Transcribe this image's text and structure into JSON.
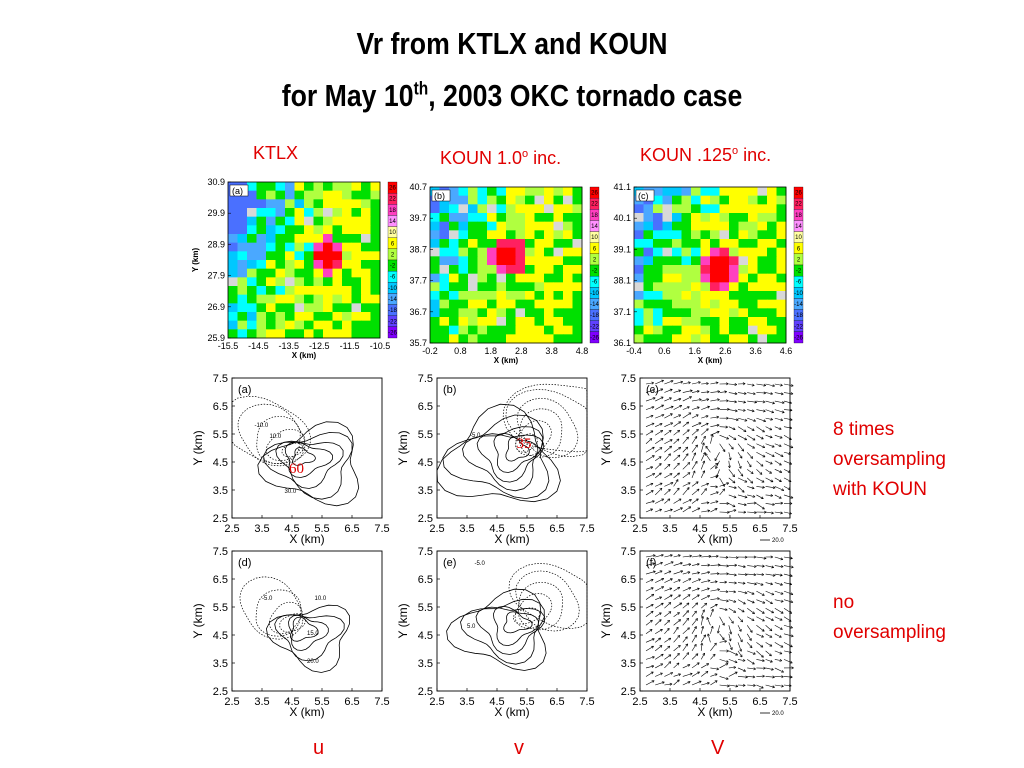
{
  "title": {
    "line1": "Vr from KTLX and KOUN",
    "line2_pre": "for May 10",
    "line2_sup": "th",
    "line2_post": ", 2003 OKC tornado case"
  },
  "column_labels": {
    "ktlx": "KTLX",
    "koun1_pre": "KOUN 1.0",
    "koun1_sup": "o",
    "koun1_post": " inc.",
    "koun2_pre": "KOUN .125",
    "koun2_sup": "o",
    "koun2_post": " inc."
  },
  "side_labels": {
    "oversampling_1": "8 times",
    "oversampling_2": "oversampling",
    "oversampling_3": "with KOUN",
    "no_1": "no",
    "no_2": "oversampling"
  },
  "bottom_labels": {
    "u": "u",
    "v": "v",
    "V": "V"
  },
  "annotations": {
    "a": "60",
    "b": "35"
  },
  "colorbar_ticks": [
    "26",
    "22",
    "18",
    "14",
    "10",
    "6",
    "2",
    "-2",
    "-6",
    "-10",
    "-14",
    "-18",
    "-22",
    "-26"
  ],
  "colors": {
    "accent": "#e00000"
  },
  "panels_top": [
    {
      "id": "a",
      "label": "(a)",
      "yticks": [
        "30.9",
        "29.9",
        "28.9",
        "27.9",
        "26.9",
        "25.9"
      ],
      "xticks": [
        "-15.5",
        "-14.5",
        "-13.5",
        "-12.5",
        "-11.5",
        "-10.5"
      ],
      "xlabel": "X (km)",
      "ylabel": "Y (km)"
    },
    {
      "id": "b",
      "label": "(b)",
      "yticks": [
        "40.7",
        "39.7",
        "38.7",
        "37.7",
        "36.7",
        "35.7"
      ],
      "xticks": [
        "-0.2",
        "0.8",
        "1.8",
        "2.8",
        "3.8",
        "4.8"
      ],
      "xlabel": "X (km)",
      "ylabel": ""
    },
    {
      "id": "c",
      "label": "(c)",
      "yticks": [
        "41.1",
        "40.1",
        "39.1",
        "38.1",
        "37.1",
        "36.1"
      ],
      "xticks": [
        "-0.4",
        "0.6",
        "1.6",
        "2.6",
        "3.6",
        "4.6"
      ],
      "xlabel": "X (km)",
      "ylabel": ""
    }
  ],
  "grid_panels": {
    "yticks": [
      "7.5",
      "6.5",
      "5.5",
      "4.5",
      "3.5",
      "2.5"
    ],
    "xticks": [
      "2.5",
      "3.5",
      "4.5",
      "5.5",
      "6.5",
      "7.5"
    ],
    "xlabel": "X (km)",
    "ylabel": "Y (km)",
    "row1": [
      "(a)",
      "(b)",
      "(c)"
    ],
    "row2": [
      "(d)",
      "(e)",
      "(f)"
    ],
    "vector_scale": "20.0",
    "contour_labels_a": [
      "-10.0",
      "10.0",
      "30.0"
    ],
    "contour_labels_b": [
      "-5.0"
    ],
    "contour_labels_d": [
      "-5.0",
      "10.0",
      "15.0",
      "20.0"
    ],
    "contour_labels_e": [
      "-5.0",
      "5.0"
    ]
  }
}
